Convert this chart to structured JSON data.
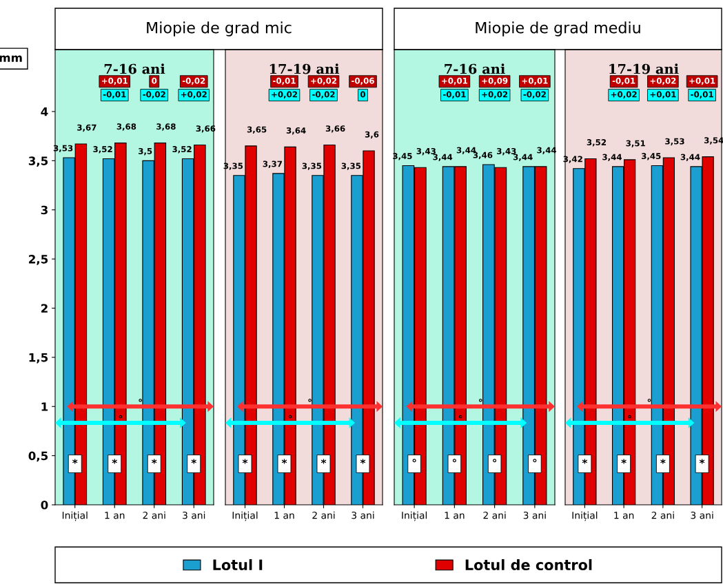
{
  "chart_data": [
    {
      "type": "bar",
      "title": "Miopie de grad mic",
      "subtitle": "7-16 ani",
      "ylabel": "mm",
      "categories": [
        "Inițial",
        "1 an",
        "2 ani",
        "3 ani"
      ],
      "ylim": [
        0,
        4.63
      ],
      "yticks": [
        0,
        {
          "value": 0.5,
          "label": "0,5"
        },
        1,
        {
          "value": 1.5,
          "label": "1,5"
        },
        2,
        {
          "value": 2.5,
          "label": "2,5"
        },
        3,
        {
          "value": 3.5,
          "label": "3,5"
        },
        4
      ],
      "legend": "bottom",
      "grid": false,
      "bands": [
        {
          "axis": "y",
          "from": 0,
          "to": 4.63,
          "color": "#b3f7e3"
        }
      ],
      "series": [
        {
          "name": "Lotul I",
          "color": "#1a9fd0",
          "values": [
            3.53,
            3.52,
            3.5,
            3.52
          ],
          "value_labels": [
            "3,53",
            "3,52",
            "3,5",
            "3,52"
          ]
        },
        {
          "name": "Lotul de control",
          "color": "#e00000",
          "values": [
            3.67,
            3.68,
            3.68,
            3.66
          ],
          "value_labels": [
            "3,67",
            "3,68",
            "3,68",
            "3,66"
          ]
        }
      ],
      "annotations": [
        "+0,01",
        "0",
        "-0,02",
        "-0,01",
        "-0,02",
        "+0,02",
        "°",
        "°",
        "*",
        "*",
        "*",
        "*"
      ]
    },
    {
      "type": "bar",
      "subtitle": "17-19 ani",
      "categories": [
        "Inițial",
        "1 an",
        "2 ani",
        "3 ani"
      ],
      "ylim": [
        0,
        4.63
      ],
      "tick_labels": "x",
      "grid": false,
      "bands": [
        {
          "axis": "y",
          "from": 0,
          "to": 4.63,
          "color": "#f2dcdb"
        }
      ],
      "series": [
        {
          "color": "#1a9fd0",
          "values": [
            3.35,
            3.37,
            3.35,
            3.35
          ],
          "value_labels": [
            "3,35",
            "3,37",
            "3,35",
            "3,35"
          ]
        },
        {
          "color": "#e00000",
          "values": [
            3.65,
            3.64,
            3.66,
            3.6
          ],
          "value_labels": [
            "3,65",
            "3,64",
            "3,66",
            "3,6"
          ]
        }
      ],
      "annotations": [
        "-0,01",
        "+0,02",
        "-0,06",
        "+0,02",
        "-0,02",
        "0",
        "°",
        "°",
        "*",
        "*",
        "*",
        "*"
      ]
    },
    {
      "type": "bar",
      "title": "Miopie de grad mediu",
      "subtitle": "7-16 ani",
      "categories": [
        "Inițial",
        "1 an",
        "2 ani",
        "3 ani"
      ],
      "ylim": [
        0,
        4.63
      ],
      "tick_labels": "x",
      "grid": false,
      "bands": [
        {
          "axis": "y",
          "from": 0,
          "to": 4.63,
          "color": "#b3f7e3"
        }
      ],
      "series": [
        {
          "color": "#1a9fd0",
          "values": [
            3.45,
            3.44,
            3.46,
            3.44
          ],
          "value_labels": [
            "3,45",
            "3,44",
            "3,46",
            "3,44"
          ]
        },
        {
          "color": "#e00000",
          "values": [
            3.43,
            3.44,
            3.43,
            3.44
          ],
          "value_labels": [
            "3,43",
            "3,44",
            "3,43",
            "3,44"
          ]
        }
      ],
      "annotations": [
        "+0,01",
        "+0,09",
        "+0,01",
        "-0,01",
        "+0,02",
        "-0,02",
        "°",
        "°",
        "°",
        "°",
        "°",
        "°"
      ]
    },
    {
      "type": "bar",
      "subtitle": "17-19 ani",
      "categories": [
        "Inițial",
        "1 an",
        "2 ani",
        "3 ani"
      ],
      "ylim": [
        0,
        4.63
      ],
      "tick_labels": "x",
      "grid": false,
      "bands": [
        {
          "axis": "y",
          "from": 0,
          "to": 4.63,
          "color": "#f2dcdb"
        }
      ],
      "series": [
        {
          "color": "#1a9fd0",
          "values": [
            3.42,
            3.44,
            3.45,
            3.44
          ],
          "value_labels": [
            "3,42",
            "3,44",
            "3,45",
            "3,44"
          ]
        },
        {
          "color": "#e00000",
          "values": [
            3.52,
            3.51,
            3.53,
            3.54
          ],
          "value_labels": [
            "3,52",
            "3,51",
            "3,53",
            "3,54"
          ]
        }
      ],
      "annotations": [
        "-0,01",
        "+0,02",
        "+0,01",
        "+0,02",
        "+0,01",
        "-0,01",
        "°",
        "°",
        "*",
        "*",
        "*",
        "*"
      ]
    }
  ]
}
